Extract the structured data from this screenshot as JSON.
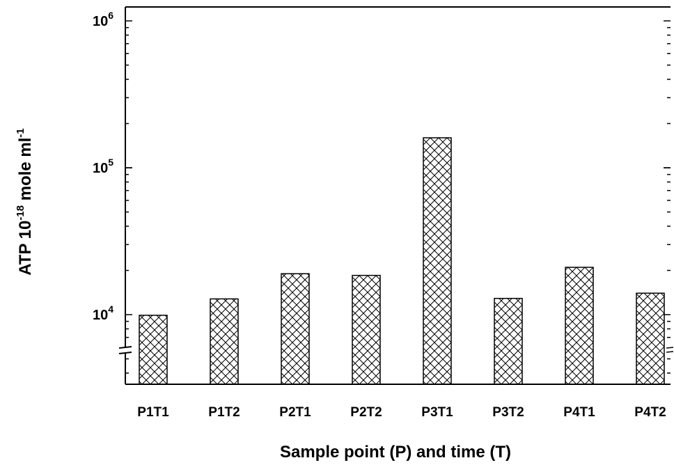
{
  "chart_data": {
    "type": "bar",
    "title": "",
    "xlabel": "Sample point (P) and time (T)",
    "ylabel": {
      "base": "ATP 10",
      "exp1": "-18",
      "middle": " mole ml",
      "exp2": "-1"
    },
    "y_scale": "log",
    "y_axis_break": true,
    "ylim": [
      3000,
      1000000
    ],
    "y_ticks": [
      {
        "value": 10000,
        "base": "10",
        "exp": "4"
      },
      {
        "value": 100000,
        "base": "10",
        "exp": "5"
      },
      {
        "value": 1000000,
        "base": "10",
        "exp": "6"
      }
    ],
    "categories": [
      "P1T1",
      "P1T2",
      "P2T1",
      "P2T2",
      "P3T1",
      "P3T2",
      "P4T1",
      "P4T2"
    ],
    "values": [
      9900,
      12800,
      19000,
      18500,
      160000,
      12900,
      21000,
      14000
    ],
    "bar_pattern": "crosshatch",
    "bar_fill": "#ffffff",
    "line_color": "#000000",
    "grid": false,
    "legend": "none"
  }
}
